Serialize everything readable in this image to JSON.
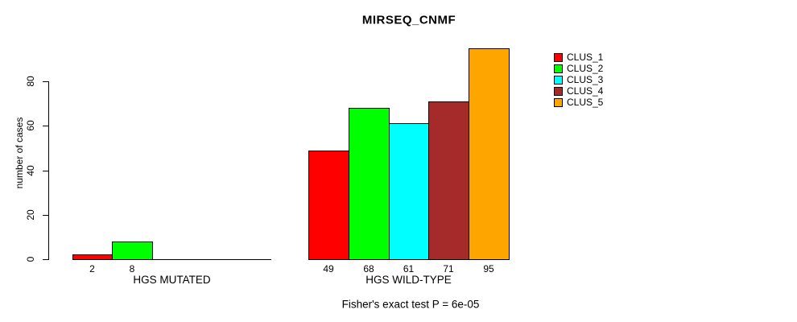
{
  "chart_data": {
    "type": "bar",
    "title": "MIRSEQ_CNMF",
    "ylabel": "number of cases",
    "xlabel": "",
    "yticks": [
      0,
      20,
      40,
      60,
      80
    ],
    "ylim": [
      0,
      95
    ],
    "grid": false,
    "legend_position": "top-right",
    "categories": [
      "HGS MUTATED",
      "HGS WILD-TYPE"
    ],
    "series": [
      {
        "name": "CLUS_1",
        "color": "#ff0000",
        "values": [
          2,
          49
        ]
      },
      {
        "name": "CLUS_2",
        "color": "#00ff00",
        "values": [
          8,
          68
        ]
      },
      {
        "name": "CLUS_3",
        "color": "#00ffff",
        "values": [
          0,
          61
        ]
      },
      {
        "name": "CLUS_4",
        "color": "#a52a2a",
        "values": [
          0,
          71
        ]
      },
      {
        "name": "CLUS_5",
        "color": "#ffa500",
        "values": [
          0,
          95
        ]
      }
    ],
    "bar_value_labels_shown": "only non-zero values",
    "footnote": "Fisher's exact test P = 6e-05"
  }
}
